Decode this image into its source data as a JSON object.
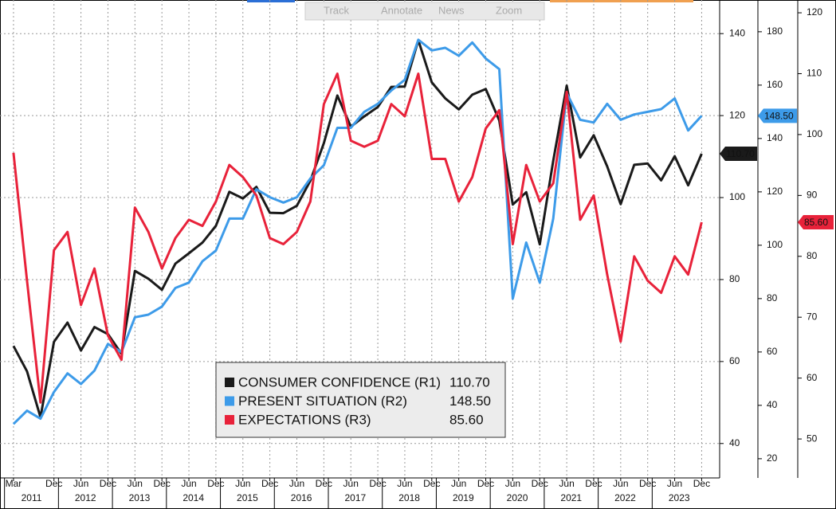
{
  "toolbar": [
    "Track",
    "Annotate",
    "News",
    "Zoom"
  ],
  "chart_data": {
    "type": "line",
    "x": [
      "2011-03",
      "2011-06",
      "2011-09",
      "2011-12",
      "2012-03",
      "2012-06",
      "2012-09",
      "2012-12",
      "2013-03",
      "2013-06",
      "2013-09",
      "2013-12",
      "2014-03",
      "2014-06",
      "2014-09",
      "2014-12",
      "2015-03",
      "2015-06",
      "2015-09",
      "2015-12",
      "2016-03",
      "2016-06",
      "2016-09",
      "2016-12",
      "2017-03",
      "2017-06",
      "2017-09",
      "2017-12",
      "2018-03",
      "2018-06",
      "2018-09",
      "2018-12",
      "2019-03",
      "2019-06",
      "2019-09",
      "2019-12",
      "2020-03",
      "2020-06",
      "2020-09",
      "2020-12",
      "2021-03",
      "2021-06",
      "2021-09",
      "2021-12",
      "2022-03",
      "2022-06",
      "2022-09",
      "2022-12",
      "2023-03",
      "2023-06",
      "2023-09",
      "2023-12"
    ],
    "xlim": [
      "2010-12",
      "2024-04"
    ],
    "xticks": [
      {
        "value": "2011-03",
        "label": "Mar"
      },
      {
        "value": "2011-12",
        "label": "Dec"
      },
      {
        "value": "2012-06",
        "label": "Jun"
      },
      {
        "value": "2012-12",
        "label": "Dec"
      },
      {
        "value": "2013-06",
        "label": "Jun"
      },
      {
        "value": "2013-12",
        "label": "Dec"
      },
      {
        "value": "2014-06",
        "label": "Jun"
      },
      {
        "value": "2014-12",
        "label": "Dec"
      },
      {
        "value": "2015-06",
        "label": "Jun"
      },
      {
        "value": "2015-12",
        "label": "Dec"
      },
      {
        "value": "2016-06",
        "label": "Jun"
      },
      {
        "value": "2016-12",
        "label": "Dec"
      },
      {
        "value": "2017-06",
        "label": "Jun"
      },
      {
        "value": "2017-12",
        "label": "Dec"
      },
      {
        "value": "2018-06",
        "label": "Jun"
      },
      {
        "value": "2018-12",
        "label": "Dec"
      },
      {
        "value": "2019-06",
        "label": "Jun"
      },
      {
        "value": "2019-12",
        "label": "Dec"
      },
      {
        "value": "2020-06",
        "label": "Jun"
      },
      {
        "value": "2020-12",
        "label": "Dec"
      },
      {
        "value": "2021-06",
        "label": "Jun"
      },
      {
        "value": "2021-12",
        "label": "Dec"
      },
      {
        "value": "2022-06",
        "label": "Jun"
      },
      {
        "value": "2022-12",
        "label": "Dec"
      },
      {
        "value": "2023-06",
        "label": "Jun"
      },
      {
        "value": "2023-12",
        "label": "Dec"
      }
    ],
    "years": [
      2011,
      2012,
      2013,
      2014,
      2015,
      2016,
      2017,
      2018,
      2019,
      2020,
      2021,
      2022,
      2023
    ],
    "ylim": [
      31.6,
      148.2
    ],
    "yticks": [
      40,
      60,
      80,
      100,
      120,
      140
    ],
    "y2lim": [
      12.8,
      191.9
    ],
    "y2ticks": [
      20,
      40,
      60,
      80,
      100,
      120,
      140,
      160,
      180
    ],
    "y3lim": [
      43.6,
      122.1
    ],
    "y3ticks": [
      50,
      60,
      70,
      80,
      90,
      100,
      110,
      120
    ],
    "grid": true,
    "series": [
      {
        "name": "CONSUMER CONFIDENCE (R1)",
        "color": "#1a1a1a",
        "axis": "y",
        "values": [
          63.8,
          57.6,
          46.4,
          64.8,
          69.5,
          62.7,
          68.4,
          66.7,
          61.9,
          82.1,
          80.2,
          77.5,
          83.9,
          86.4,
          89.0,
          93.1,
          101.4,
          99.8,
          102.6,
          96.3,
          96.2,
          98.0,
          104.1,
          113.3,
          124.9,
          117.3,
          119.8,
          122.1,
          127.0,
          127.1,
          138.4,
          128.1,
          124.2,
          121.5,
          125.1,
          126.5,
          118.8,
          98.3,
          101.3,
          88.6,
          109.0,
          127.3,
          109.8,
          115.2,
          107.6,
          98.4,
          108.0,
          108.3,
          104.2,
          110.1,
          103.0,
          110.7
        ],
        "value_labels": [
          null,
          null,
          null,
          null,
          null,
          null,
          null,
          null,
          null,
          null,
          null,
          null,
          null,
          null,
          null,
          null,
          null,
          null,
          null,
          null,
          null,
          null,
          null,
          null,
          null,
          null,
          null,
          null,
          null,
          null,
          null,
          null,
          null,
          null,
          null,
          null,
          null,
          null,
          null,
          null,
          null,
          null,
          null,
          null,
          null,
          null,
          null,
          null,
          null,
          null,
          null,
          "110.70"
        ]
      },
      {
        "name": "PRESENT SITUATION (R2)",
        "color": "#3d9be9",
        "axis": "y2",
        "values": [
          33,
          38,
          35,
          45,
          52,
          48,
          53,
          63,
          60,
          73,
          74,
          77,
          84,
          86,
          94,
          98,
          110,
          110,
          121,
          118,
          116,
          118,
          125,
          130,
          144,
          144,
          150,
          153,
          158,
          162,
          177,
          173,
          174,
          171,
          176,
          170,
          166,
          80,
          101,
          86,
          110,
          157,
          147,
          146,
          153,
          147,
          149,
          150,
          151,
          155,
          143,
          148.5
        ],
        "value_labels": [
          null,
          null,
          null,
          null,
          null,
          null,
          null,
          null,
          null,
          null,
          null,
          null,
          null,
          null,
          null,
          null,
          null,
          null,
          null,
          null,
          null,
          null,
          null,
          null,
          null,
          null,
          null,
          null,
          null,
          null,
          null,
          null,
          null,
          null,
          null,
          null,
          null,
          null,
          null,
          null,
          null,
          null,
          null,
          null,
          null,
          null,
          null,
          null,
          null,
          null,
          null,
          "148.50"
        ]
      },
      {
        "name": "EXPECTATIONS (R3)",
        "color": "#e8223a",
        "axis": "y3",
        "values": [
          97,
          76,
          56,
          81,
          84,
          72,
          78,
          67,
          63,
          88,
          84,
          78,
          83,
          86,
          85,
          89,
          95,
          93,
          90,
          83,
          82,
          84,
          89,
          105,
          110,
          99,
          98,
          99,
          105,
          103,
          110,
          96,
          96,
          89,
          93,
          101,
          104,
          82,
          95,
          89,
          92,
          107,
          86,
          90,
          77,
          66,
          80,
          76,
          74,
          80,
          77,
          85.6
        ],
        "value_labels": [
          null,
          null,
          null,
          null,
          null,
          null,
          null,
          null,
          null,
          null,
          null,
          null,
          null,
          null,
          null,
          null,
          null,
          null,
          null,
          null,
          null,
          null,
          null,
          null,
          null,
          null,
          null,
          null,
          null,
          null,
          null,
          null,
          null,
          null,
          null,
          null,
          null,
          null,
          null,
          null,
          null,
          null,
          null,
          null,
          null,
          null,
          null,
          null,
          null,
          null,
          null,
          "85.60"
        ]
      }
    ]
  }
}
